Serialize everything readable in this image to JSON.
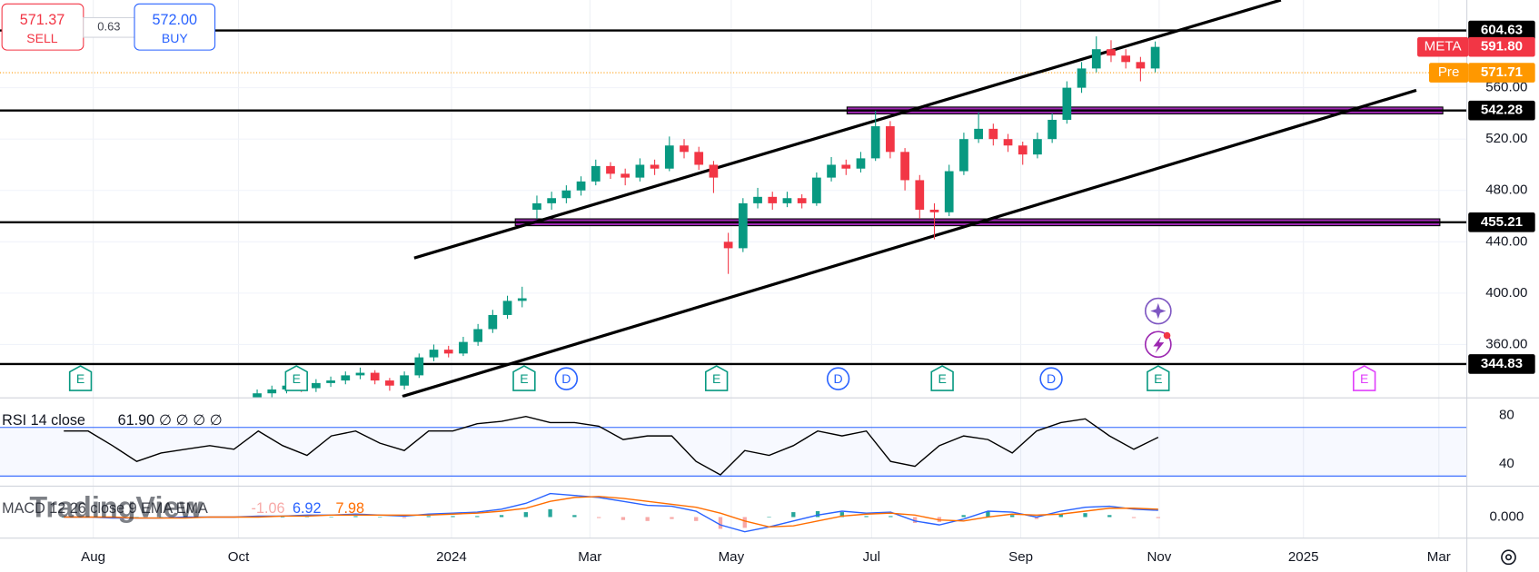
{
  "chart_data": {
    "type": "candlestick",
    "symbol": "META",
    "ohlc": [
      [
        318,
        325,
        315,
        322
      ],
      [
        322,
        328,
        319,
        325
      ],
      [
        325,
        331,
        322,
        328
      ],
      [
        328,
        331,
        323,
        326
      ],
      [
        326,
        333,
        323,
        330
      ],
      [
        330,
        335,
        327,
        332
      ],
      [
        332,
        339,
        329,
        336
      ],
      [
        336,
        342,
        333,
        338
      ],
      [
        338,
        340,
        329,
        332
      ],
      [
        332,
        334,
        324,
        328
      ],
      [
        328,
        339,
        325,
        336
      ],
      [
        336,
        353,
        334,
        350
      ],
      [
        350,
        360,
        347,
        356
      ],
      [
        356,
        359,
        350,
        353
      ],
      [
        353,
        366,
        351,
        362
      ],
      [
        362,
        376,
        359,
        372
      ],
      [
        372,
        387,
        369,
        383
      ],
      [
        383,
        398,
        380,
        394
      ],
      [
        394,
        405,
        389,
        396
      ],
      [
        465,
        476,
        458,
        470
      ],
      [
        470,
        479,
        465,
        474
      ],
      [
        474,
        484,
        470,
        480
      ],
      [
        480,
        491,
        476,
        487
      ],
      [
        487,
        504,
        484,
        499
      ],
      [
        499,
        502,
        489,
        493
      ],
      [
        493,
        497,
        484,
        490
      ],
      [
        490,
        505,
        487,
        500
      ],
      [
        500,
        504,
        492,
        497
      ],
      [
        497,
        522,
        495,
        515
      ],
      [
        515,
        520,
        505,
        510
      ],
      [
        510,
        514,
        496,
        500
      ],
      [
        500,
        503,
        478,
        490
      ],
      [
        440,
        447,
        415,
        435
      ],
      [
        435,
        474,
        432,
        470
      ],
      [
        470,
        482,
        466,
        475
      ],
      [
        475,
        479,
        465,
        470
      ],
      [
        470,
        479,
        467,
        474
      ],
      [
        474,
        477,
        466,
        470
      ],
      [
        470,
        494,
        468,
        490
      ],
      [
        490,
        506,
        487,
        500
      ],
      [
        500,
        504,
        492,
        497
      ],
      [
        497,
        510,
        494,
        505
      ],
      [
        505,
        542,
        503,
        530
      ],
      [
        530,
        534,
        505,
        510
      ],
      [
        510,
        513,
        480,
        488
      ],
      [
        488,
        492,
        458,
        465
      ],
      [
        465,
        470,
        442,
        463
      ],
      [
        463,
        500,
        460,
        495
      ],
      [
        495,
        525,
        492,
        520
      ],
      [
        520,
        541,
        517,
        528
      ],
      [
        528,
        532,
        515,
        520
      ],
      [
        520,
        524,
        510,
        515
      ],
      [
        515,
        518,
        500,
        508
      ],
      [
        508,
        525,
        505,
        520
      ],
      [
        520,
        540,
        517,
        535
      ],
      [
        535,
        565,
        532,
        560
      ],
      [
        560,
        580,
        556,
        575
      ],
      [
        575,
        600,
        572,
        590
      ],
      [
        590,
        597,
        580,
        585
      ],
      [
        585,
        590,
        575,
        580
      ],
      [
        580,
        584,
        565,
        575
      ],
      [
        575,
        596,
        572,
        591.8
      ]
    ],
    "up_color": "#089981",
    "down_color": "#f23645",
    "ylim": [
      318.85,
      628.32
    ],
    "yticks": [
      {
        "value": 360,
        "label": "360.00"
      },
      {
        "value": 400,
        "label": "400.00"
      },
      {
        "value": 440,
        "label": "440.00"
      },
      {
        "value": 480,
        "label": "480.00"
      },
      {
        "value": 520,
        "label": "520.00"
      },
      {
        "value": 560,
        "label": "560.00"
      }
    ],
    "grid": true,
    "hlines": [
      604.63,
      542.28,
      455.21,
      344.83
    ],
    "trendlines": [
      {
        "start": 427.4,
        "end": 628.3
      },
      {
        "start": 319.6,
        "end": 558.0
      }
    ],
    "last": {
      "symbol": "META",
      "value": 591.8,
      "label": "591.80",
      "color": "#f23645"
    },
    "premarket": {
      "name": "Pre",
      "value": 571.71,
      "color": "#ff9800"
    },
    "trade": {
      "sell": {
        "price": 571.37,
        "action": "SELL"
      },
      "spread": 0.63,
      "buy": {
        "price": 572,
        "price_label": "572.00",
        "action": "BUY"
      }
    },
    "time_axis": [
      "Aug",
      "Oct",
      "2024",
      "Mar",
      "May",
      "Jul",
      "Sep",
      "Nov",
      "2025",
      "Mar"
    ],
    "events": [
      "E",
      "E",
      "E",
      "D",
      "E",
      "D",
      "E",
      "D",
      "E",
      "E"
    ],
    "rsi": {
      "name": "RSI 14 close",
      "value_label": "61.90",
      "extra": "∅ ∅ ∅ ∅",
      "color": "#000000",
      "values": [
        67,
        67,
        55,
        42,
        49,
        52,
        55,
        52,
        67,
        55,
        47,
        63,
        67,
        57,
        51,
        67,
        67,
        73,
        75,
        79,
        74,
        74,
        71,
        60,
        63,
        63,
        42,
        31,
        51,
        47,
        55,
        67,
        63,
        67,
        42,
        38,
        55,
        63,
        60,
        49,
        67,
        74,
        77,
        63,
        52,
        61.9
      ],
      "ylim": [
        22.9,
        93.9
      ],
      "yticks": [
        40,
        80
      ],
      "bands": [
        30,
        70
      ]
    },
    "macd": {
      "name": "MACD 12 26 close 9 EMA EMA",
      "ylim": [
        -21,
        30
      ],
      "yticks": [
        {
          "value": 0,
          "label": "0.000"
        }
      ],
      "histogram": {
        "color": "#f7a9a7",
        "values": [
          0,
          0,
          -1,
          0,
          0,
          1,
          0,
          0,
          1,
          0,
          1,
          0,
          1,
          0,
          -1,
          1,
          1,
          1,
          2,
          5,
          8,
          2,
          -1,
          -3,
          -4,
          -2,
          -4,
          -12,
          -11,
          0,
          5,
          6,
          5,
          1,
          1,
          -6,
          -5,
          2,
          6,
          2,
          -2,
          3,
          4,
          2,
          -1,
          -1.06
        ]
      },
      "series": [
        {
          "color": "#2962ff",
          "values": [
            0,
            0,
            -1,
            -1,
            -1,
            0,
            0,
            0,
            1,
            1,
            2,
            2,
            3,
            2,
            1,
            3,
            4,
            5,
            8,
            14,
            24,
            22,
            20,
            16,
            12,
            11,
            6,
            -8,
            -15,
            -10,
            -4,
            2,
            6,
            4,
            5,
            -4,
            -8,
            -2,
            6,
            5,
            0,
            6,
            10,
            11,
            8,
            6.92
          ]
        },
        {
          "color": "#ff6d00",
          "values": [
            0,
            0,
            0,
            -1,
            -1,
            -1,
            0,
            0,
            0,
            1,
            1,
            2,
            2,
            2,
            2,
            2,
            3,
            4,
            6,
            9,
            16,
            20,
            21,
            19,
            16,
            13,
            10,
            4,
            -4,
            -10,
            -9,
            -4,
            1,
            3,
            4,
            2,
            -3,
            -4,
            0,
            3,
            2,
            3,
            6,
            9,
            9,
            7.98
          ]
        }
      ]
    },
    "watermark": "TradingView"
  }
}
